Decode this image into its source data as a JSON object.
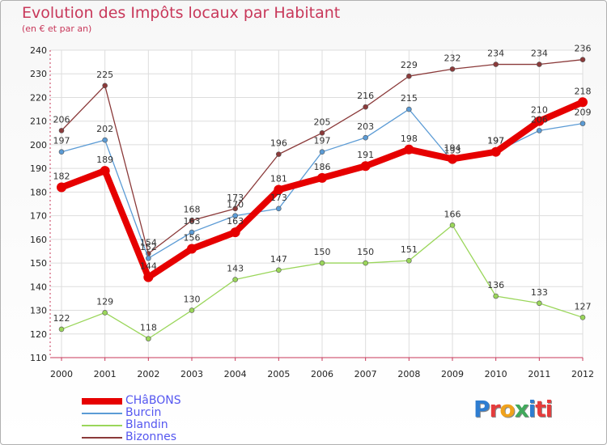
{
  "chart_data": {
    "type": "line",
    "title": "Evolution des Impôts locaux par Habitant",
    "subtitle": "(en € et par an)",
    "x": [
      "2000",
      "2001",
      "2002",
      "2003",
      "2004",
      "2005",
      "2006",
      "2007",
      "2008",
      "2009",
      "2010",
      "2011",
      "2012"
    ],
    "ylim": [
      110,
      240
    ],
    "yticks": [
      110,
      120,
      130,
      140,
      150,
      160,
      170,
      180,
      190,
      200,
      210,
      220,
      230,
      240
    ],
    "grid": true,
    "series": [
      {
        "name": "CHâBONS",
        "color": "#e60000",
        "values": [
          182,
          189,
          144,
          156,
          163,
          181,
          186,
          191,
          198,
          194,
          197,
          210,
          218
        ]
      },
      {
        "name": "Burcin",
        "color": "#5b9bd5",
        "values": [
          197,
          202,
          152,
          163,
          170,
          173,
          197,
          203,
          215,
          193,
          197,
          206,
          209
        ]
      },
      {
        "name": "Blandin",
        "color": "#9ad65a",
        "values": [
          122,
          129,
          118,
          130,
          143,
          147,
          150,
          150,
          151,
          166,
          136,
          133,
          127
        ]
      },
      {
        "name": "Bizonnes",
        "color": "#8b3a3a",
        "values": [
          206,
          225,
          154,
          168,
          173,
          196,
          205,
          216,
          229,
          232,
          234,
          234,
          236
        ]
      }
    ]
  },
  "logo": [
    "P",
    "r",
    "o",
    "x",
    "i",
    "ti"
  ]
}
